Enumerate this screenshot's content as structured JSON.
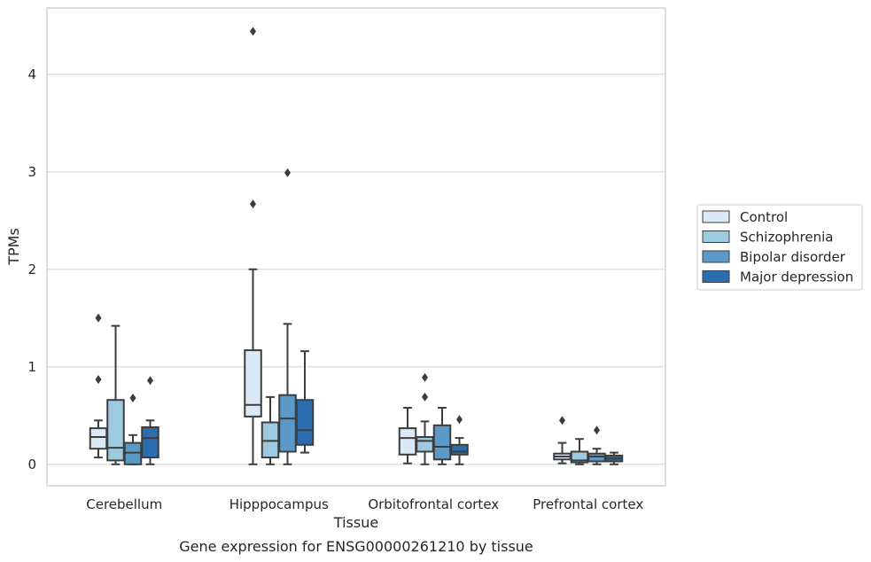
{
  "chart_data": {
    "type": "box",
    "title": "Gene expression for ENSG00000261210 by tissue",
    "xlabel": "Tissue",
    "ylabel": "TPMs",
    "ylim": [
      -0.22,
      4.68
    ],
    "yticks": [
      0,
      1,
      2,
      3,
      4
    ],
    "grid": "horizontal",
    "legend_position": "right",
    "categories": [
      "Cerebellum",
      "Hipppocampus",
      "Orbitofrontal cortex",
      "Prefrontal cortex"
    ],
    "series": [
      {
        "name": "Control",
        "color": "#dbe9f6",
        "boxes": [
          {
            "whislo": 0.07,
            "q1": 0.16,
            "med": 0.28,
            "q3": 0.37,
            "whishi": 0.45,
            "fliers": [
              0.87,
              1.5
            ]
          },
          {
            "whislo": 0.0,
            "q1": 0.49,
            "med": 0.61,
            "q3": 1.17,
            "whishi": 2.0,
            "fliers": [
              2.67,
              4.44
            ]
          },
          {
            "whislo": 0.01,
            "q1": 0.1,
            "med": 0.27,
            "q3": 0.37,
            "whishi": 0.58,
            "fliers": []
          },
          {
            "whislo": 0.01,
            "q1": 0.05,
            "med": 0.08,
            "q3": 0.11,
            "whishi": 0.22,
            "fliers": [
              0.45
            ]
          }
        ]
      },
      {
        "name": "Schizophrenia",
        "color": "#9ecae1",
        "boxes": [
          {
            "whislo": 0.0,
            "q1": 0.04,
            "med": 0.17,
            "q3": 0.66,
            "whishi": 1.42,
            "fliers": []
          },
          {
            "whislo": 0.0,
            "q1": 0.07,
            "med": 0.24,
            "q3": 0.43,
            "whishi": 0.69,
            "fliers": []
          },
          {
            "whislo": 0.0,
            "q1": 0.13,
            "med": 0.24,
            "q3": 0.28,
            "whishi": 0.44,
            "fliers": [
              0.69,
              0.89
            ]
          },
          {
            "whislo": 0.0,
            "q1": 0.02,
            "med": 0.04,
            "q3": 0.13,
            "whishi": 0.26,
            "fliers": []
          }
        ]
      },
      {
        "name": "Bipolar disorder",
        "color": "#5b9ac8",
        "boxes": [
          {
            "whislo": 0.0,
            "q1": 0.0,
            "med": 0.12,
            "q3": 0.22,
            "whishi": 0.3,
            "fliers": [
              0.68
            ]
          },
          {
            "whislo": 0.0,
            "q1": 0.13,
            "med": 0.47,
            "q3": 0.71,
            "whishi": 1.44,
            "fliers": [
              2.99
            ]
          },
          {
            "whislo": 0.0,
            "q1": 0.05,
            "med": 0.18,
            "q3": 0.4,
            "whishi": 0.58,
            "fliers": []
          },
          {
            "whislo": 0.0,
            "q1": 0.03,
            "med": 0.08,
            "q3": 0.11,
            "whishi": 0.16,
            "fliers": [
              0.35
            ]
          }
        ]
      },
      {
        "name": "Major depression",
        "color": "#2c6ead",
        "boxes": [
          {
            "whislo": 0.0,
            "q1": 0.07,
            "med": 0.27,
            "q3": 0.38,
            "whishi": 0.45,
            "fliers": [
              0.86
            ]
          },
          {
            "whislo": 0.12,
            "q1": 0.2,
            "med": 0.35,
            "q3": 0.66,
            "whishi": 1.16,
            "fliers": []
          },
          {
            "whislo": 0.0,
            "q1": 0.1,
            "med": 0.13,
            "q3": 0.2,
            "whishi": 0.27,
            "fliers": [
              0.46
            ]
          },
          {
            "whislo": 0.0,
            "q1": 0.03,
            "med": 0.06,
            "q3": 0.09,
            "whishi": 0.12,
            "fliers": []
          }
        ]
      }
    ]
  }
}
